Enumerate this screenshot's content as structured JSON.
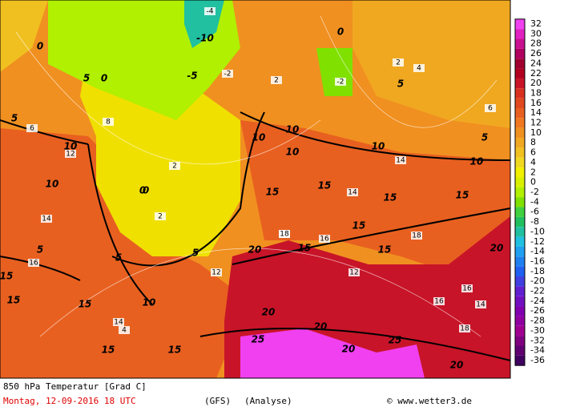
{
  "map": {
    "legend": {
      "labels": [
        32,
        30,
        28,
        26,
        24,
        22,
        20,
        18,
        16,
        14,
        12,
        10,
        8,
        6,
        4,
        2,
        0,
        -2,
        -4,
        -6,
        -8,
        -10,
        -12,
        -14,
        -16,
        -18,
        -20,
        -22,
        -24,
        -26,
        -28,
        -30,
        -32,
        -34,
        -36
      ],
      "colors": [
        "#f040f0",
        "#e020c0",
        "#c81090",
        "#b00060",
        "#a00030",
        "#b00020",
        "#c81428",
        "#d83020",
        "#e04820",
        "#e86020",
        "#f07820",
        "#f09020",
        "#f0a820",
        "#f0c020",
        "#f0d820",
        "#f0f000",
        "#d8f000",
        "#b0f000",
        "#80e000",
        "#40d040",
        "#20c060",
        "#20c0a0",
        "#20c0e0",
        "#20a0f0",
        "#2080f0",
        "#2060f0",
        "#4040e0",
        "#6020d0",
        "#7010c0",
        "#8000b0",
        "#9000a0",
        "#a00090",
        "#800080",
        "#600070",
        "#400060"
      ]
    },
    "contour_labels": [
      "10",
      "10",
      "5",
      "5",
      "0",
      "0",
      "-10",
      "-5",
      "0",
      "0",
      "5",
      "5",
      "10",
      "10",
      "15",
      "15",
      "15",
      "15",
      "15",
      "15",
      "15",
      "20",
      "20",
      "20",
      "20",
      "20",
      "25",
      "25",
      "20",
      "10",
      "10",
      "15",
      "15",
      "15",
      "5",
      "5",
      "0",
      "15",
      "15",
      "10",
      "10",
      "5"
    ],
    "isotherm_labels": [
      "12",
      "14",
      "16",
      "18",
      "18",
      "16",
      "14",
      "12",
      "8",
      "6",
      "4",
      "2",
      "2",
      "2",
      "-2",
      "-2",
      "-4",
      "2",
      "4",
      "6",
      "14",
      "14",
      "16",
      "18",
      "18",
      "16",
      "14",
      "12"
    ],
    "footer": {
      "title": "850 hPa Temperatur [Grad C]",
      "date": "Montag, 12-09-2016  18 UTC",
      "model": "(GFS)",
      "run": "(Analyse)",
      "credit": "© www.wetter3.de"
    }
  }
}
